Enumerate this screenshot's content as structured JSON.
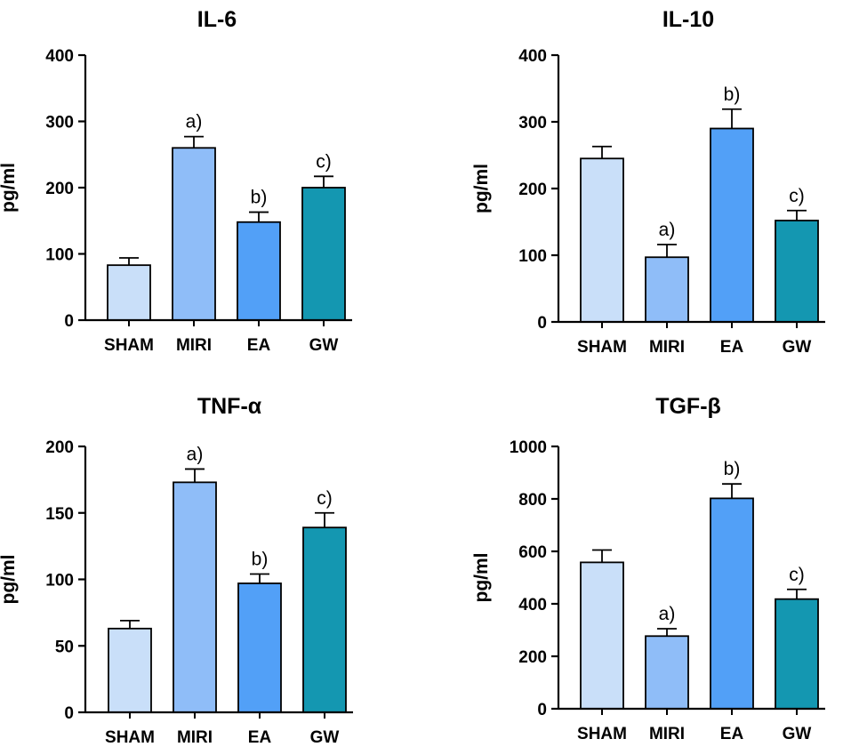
{
  "chart_data": [
    {
      "type": "bar",
      "title": "IL-6",
      "xlabel": "",
      "ylabel": "pg/ml",
      "ylim": [
        0,
        400
      ],
      "yticks": [
        0,
        100,
        200,
        300,
        400
      ],
      "categories": [
        "SHAM",
        "MIRI",
        "EA",
        "GW"
      ],
      "values": [
        83,
        260,
        148,
        200
      ],
      "errors": [
        11,
        17,
        15,
        17
      ],
      "significance": [
        "",
        "a)",
        "b)",
        "c)"
      ],
      "colors": [
        "#c9dff9",
        "#8fbdf8",
        "#52a0f7",
        "#1497b1"
      ]
    },
    {
      "type": "bar",
      "title": "IL-10",
      "xlabel": "",
      "ylabel": "pg/ml",
      "ylim": [
        0,
        400
      ],
      "yticks": [
        0,
        100,
        200,
        300,
        400
      ],
      "categories": [
        "SHAM",
        "MIRI",
        "EA",
        "GW"
      ],
      "values": [
        245,
        97,
        290,
        152
      ],
      "errors": [
        18,
        19,
        29,
        15
      ],
      "significance": [
        "",
        "a)",
        "b)",
        "c)"
      ],
      "colors": [
        "#c9dff9",
        "#8fbdf8",
        "#52a0f7",
        "#1497b1"
      ]
    },
    {
      "type": "bar",
      "title": "TNF-α",
      "xlabel": "",
      "ylabel": "pg/ml",
      "ylim": [
        0,
        200
      ],
      "yticks": [
        0,
        50,
        100,
        150,
        200
      ],
      "categories": [
        "SHAM",
        "MIRI",
        "EA",
        "GW"
      ],
      "values": [
        63,
        173,
        97,
        139
      ],
      "errors": [
        6,
        10,
        7,
        11
      ],
      "significance": [
        "",
        "a)",
        "b)",
        "c)"
      ],
      "colors": [
        "#c9dff9",
        "#8fbdf8",
        "#52a0f7",
        "#1497b1"
      ]
    },
    {
      "type": "bar",
      "title": "TGF-β",
      "xlabel": "",
      "ylabel": "pg/ml",
      "ylim": [
        0,
        1000
      ],
      "yticks": [
        0,
        200,
        400,
        600,
        800,
        1000
      ],
      "categories": [
        "SHAM",
        "MIRI",
        "EA",
        "GW"
      ],
      "values": [
        558,
        277,
        802,
        418
      ],
      "errors": [
        47,
        28,
        55,
        37
      ],
      "significance": [
        "",
        "a)",
        "b)",
        "c)"
      ],
      "colors": [
        "#c9dff9",
        "#8fbdf8",
        "#52a0f7",
        "#1497b1"
      ]
    }
  ]
}
